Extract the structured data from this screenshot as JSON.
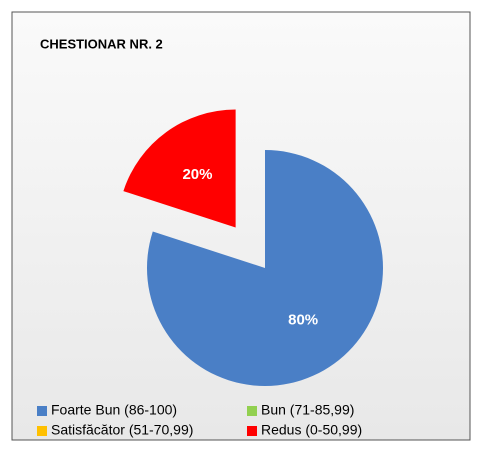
{
  "chart_data": {
    "type": "pie",
    "title": "CHESTIONAR NR. 2",
    "categories": [
      "Foarte Bun (86-100)",
      "Bun (71-85,99)",
      "Satisfăcător (51-70,99)",
      "Redus (0-50,99)"
    ],
    "values": [
      80,
      0,
      0,
      20
    ],
    "value_labels": [
      "80%",
      null,
      null,
      "20%"
    ],
    "colors": [
      "#4a7fc6",
      "#92d050",
      "#ffc000",
      "#ff0000"
    ],
    "exploded": [
      false,
      false,
      false,
      true
    ]
  }
}
